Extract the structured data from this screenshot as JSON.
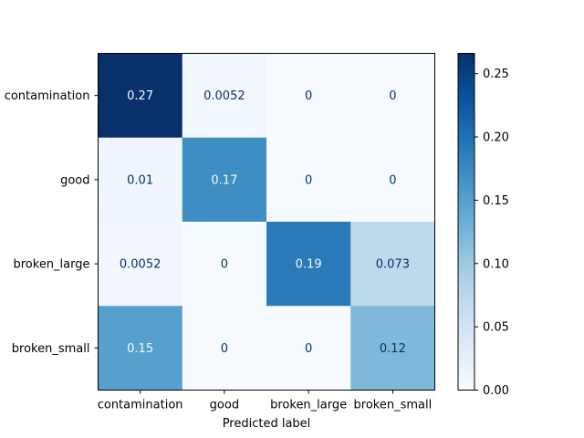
{
  "chart_data": {
    "type": "heatmap",
    "title": "",
    "xlabel": "Predicted label",
    "ylabel": "",
    "row_labels": [
      "contamination",
      "good",
      "broken_large",
      "broken_small"
    ],
    "col_labels": [
      "contamination",
      "good",
      "broken_large",
      "broken_small"
    ],
    "values": [
      [
        0.27,
        0.0052,
        0,
        0
      ],
      [
        0.01,
        0.17,
        0,
        0
      ],
      [
        0.0052,
        0,
        0.19,
        0.073
      ],
      [
        0.15,
        0,
        0,
        0.12
      ]
    ],
    "cell_labels": [
      [
        "0.27",
        "0.0052",
        "0",
        "0"
      ],
      [
        "0.01",
        "0.17",
        "0",
        "0"
      ],
      [
        "0.0052",
        "0",
        "0.19",
        "0.073"
      ],
      [
        "0.15",
        "0",
        "0",
        "0.12"
      ]
    ],
    "colormap": "Blues",
    "vmin": 0,
    "vmax": 0.266,
    "colorbar_ticks": [
      0.0,
      0.05,
      0.1,
      0.15,
      0.2,
      0.25
    ],
    "colorbar_tick_labels": [
      "0.00",
      "0.05",
      "0.10",
      "0.15",
      "0.20",
      "0.25"
    ]
  }
}
